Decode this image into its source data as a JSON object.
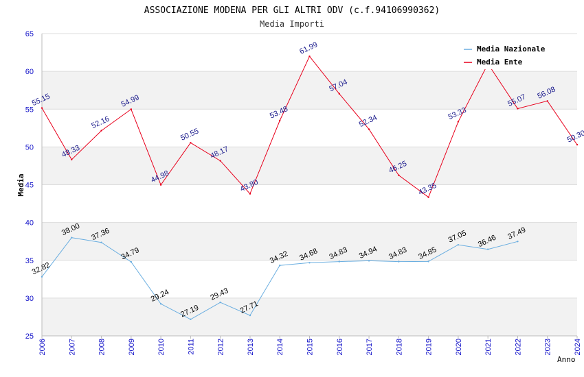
{
  "chart_data": {
    "type": "line",
    "title": "ASSOCIAZIONE MODENA PER GLI ALTRI ODV (c.f.94106990362)",
    "subtitle": "Media Importi",
    "xlabel": "Anno",
    "ylabel": "Media",
    "ylim": [
      25,
      65
    ],
    "yticks": [
      25,
      30,
      35,
      40,
      45,
      50,
      55,
      60,
      65
    ],
    "x": [
      2006,
      2007,
      2008,
      2009,
      2010,
      2011,
      2012,
      2013,
      2014,
      2015,
      2016,
      2017,
      2018,
      2019,
      2020,
      2021,
      2022,
      2023,
      2024
    ],
    "grid": "horizontal alternating bands",
    "legend_position": "top-right",
    "series": [
      {
        "name": "Media Nazionale",
        "color": "#6aaee0",
        "label_color": "#000000",
        "x": [
          2006,
          2007,
          2008,
          2009,
          2010,
          2011,
          2012,
          2013,
          2014,
          2015,
          2016,
          2017,
          2018,
          2019,
          2020,
          2021,
          2022
        ],
        "values": [
          32.82,
          38.0,
          37.36,
          34.79,
          29.24,
          27.19,
          29.43,
          27.71,
          34.32,
          34.68,
          34.83,
          34.94,
          34.83,
          34.85,
          37.05,
          36.46,
          37.49
        ],
        "labels": [
          "32.82",
          "38.00",
          "37.36",
          "34.79",
          "29.24",
          "27.19",
          "29.43",
          "27.71",
          "34.32",
          "34.68",
          "34.83",
          "34.94",
          "34.83",
          "34.85",
          "37.05",
          "36.46",
          "37.49"
        ]
      },
      {
        "name": "Media Ente",
        "color": "#e8001c",
        "label_color": "#1a1a8c",
        "x": [
          2006,
          2007,
          2008,
          2009,
          2010,
          2011,
          2012,
          2013,
          2014,
          2015,
          2016,
          2017,
          2018,
          2019,
          2020,
          2021,
          2022,
          2023,
          2024
        ],
        "values": [
          55.15,
          48.33,
          52.16,
          54.99,
          44.98,
          50.55,
          48.17,
          43.8,
          53.48,
          61.99,
          57.04,
          52.34,
          46.25,
          43.35,
          53.33,
          61.0,
          55.07,
          56.08,
          50.3
        ],
        "labels": [
          "55.15",
          "48.33",
          "52.16",
          "54.99",
          "44.98",
          "50.55",
          "48.17",
          "43.80",
          "53.48",
          "61.99",
          "57.04",
          "52.34",
          "46.25",
          "43.35",
          "53.33",
          "",
          "55.07",
          "56.08",
          "50.30"
        ]
      }
    ]
  },
  "colors": {
    "axis_tick_label": "#1010c8",
    "band": "#f2f2f2",
    "gridline": "#dcdcdc"
  }
}
